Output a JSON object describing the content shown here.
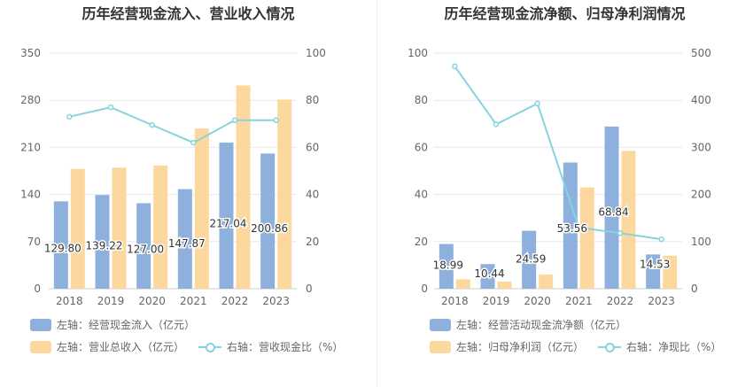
{
  "colors": {
    "bar_blue": "#8eb0dd",
    "bar_orange": "#fdd89e",
    "line": "#86d4dc",
    "grid": "#e6e9f0",
    "axis_text": "#666666"
  },
  "chart_data": [
    {
      "type": "bar",
      "title": "历年经营现金流入、营业收入情况",
      "categories": [
        "2018",
        "2019",
        "2020",
        "2021",
        "2022",
        "2023"
      ],
      "left_axis": {
        "ylim": [
          0,
          350
        ],
        "ticks": [
          "0",
          "70",
          "140",
          "210",
          "280",
          "350"
        ]
      },
      "right_axis": {
        "ylim": [
          0,
          100
        ],
        "ticks": [
          "0",
          "20",
          "40",
          "60",
          "80",
          "100"
        ]
      },
      "series": [
        {
          "name": "左轴：经营现金流入（亿元）",
          "axis": "left",
          "kind": "bar",
          "color": "#8eb0dd",
          "values": [
            129.8,
            139.22,
            127.0,
            147.87,
            217.04,
            200.86
          ],
          "labels": [
            "129.80",
            "139.22",
            "127.00",
            "147.87",
            "217.04",
            "200.86"
          ]
        },
        {
          "name": "左轴：营业总收入（亿元）",
          "axis": "left",
          "kind": "bar",
          "color": "#fdd89e",
          "values": [
            178,
            180,
            183,
            238,
            302,
            281
          ]
        },
        {
          "name": "右轴：营收现金比（%）",
          "axis": "right",
          "kind": "line",
          "color": "#86d4dc",
          "values": [
            73,
            77,
            69.5,
            62,
            71.5,
            71.5
          ]
        }
      ],
      "legend": {
        "placement": "bottom"
      }
    },
    {
      "type": "bar",
      "title": "历年经营现金流净额、归母净利润情况",
      "categories": [
        "2018",
        "2019",
        "2020",
        "2021",
        "2022",
        "2023"
      ],
      "left_axis": {
        "ylim": [
          0,
          100
        ],
        "ticks": [
          "0",
          "20",
          "40",
          "60",
          "80",
          "100"
        ]
      },
      "right_axis": {
        "ylim": [
          0,
          500
        ],
        "ticks": [
          "0",
          "100",
          "200",
          "300",
          "400",
          "500"
        ]
      },
      "series": [
        {
          "name": "左轴：经营活动现金流净额（亿元）",
          "axis": "left",
          "kind": "bar",
          "color": "#8eb0dd",
          "values": [
            18.99,
            10.44,
            24.59,
            53.56,
            68.84,
            14.53
          ],
          "labels": [
            "18.99",
            "10.44",
            "24.59",
            "53.56",
            "68.84",
            "14.53"
          ]
        },
        {
          "name": "左轴：归母净利润（亿元）",
          "axis": "left",
          "kind": "bar",
          "color": "#fdd89e",
          "values": [
            4,
            3,
            6,
            43,
            58.5,
            14
          ]
        },
        {
          "name": "右轴：净现比（%）",
          "axis": "right",
          "kind": "line",
          "color": "#86d4dc",
          "values": [
            472,
            349,
            393,
            130,
            118,
            105
          ]
        }
      ],
      "legend": {
        "placement": "bottom"
      }
    }
  ]
}
